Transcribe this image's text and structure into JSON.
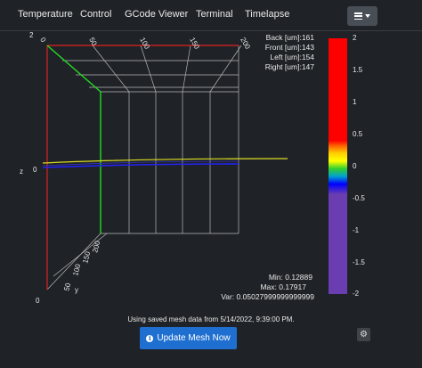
{
  "tabs": [
    "Temperature",
    "Control",
    "GCode Viewer",
    "Terminal",
    "Timelapse"
  ],
  "menu_button": {
    "icon": "bars-icon",
    "caret": "caret-down-icon"
  },
  "plot": {
    "axis_y_label": "y",
    "axis_z_label": "z",
    "z_origin_label": "0",
    "corner_label": "2",
    "corner_label_bottom": "0",
    "x_ticks": [
      "0",
      "50",
      "100",
      "150",
      "200"
    ],
    "y_ticks": [
      "50",
      "100",
      "150",
      "200"
    ],
    "y_tick_zero": "0",
    "corners": [
      {
        "label": "Back [um]:",
        "value": "161"
      },
      {
        "label": "Front [um]:",
        "value": "143"
      },
      {
        "label": "Left [um]:",
        "value": "154"
      },
      {
        "label": "Right [um]:",
        "value": "147"
      }
    ],
    "stats": [
      {
        "label": "Min:",
        "value": "0.12889"
      },
      {
        "label": "Max:",
        "value": "0.17917"
      },
      {
        "label": "Var:",
        "value": "0.05027999999999999"
      }
    ],
    "colorbar_ticks": [
      "2",
      "1.5",
      "1",
      "0.5",
      "0",
      "-0.5",
      "-1",
      "-1.5",
      "-2"
    ],
    "colors": {
      "x_axis": "#e02020",
      "y_axis": "#22dd22",
      "z_axis": "#2222ee",
      "mesh": "#dddd22",
      "grid": "#b0b0b0"
    }
  },
  "mesh_note": "Using saved mesh data from 5/14/2022, 9:39:00 PM.",
  "update_button": {
    "label": "Update Mesh Now",
    "icon": "info-circle-icon"
  },
  "settings_button": {
    "icon": "gear-icon"
  }
}
